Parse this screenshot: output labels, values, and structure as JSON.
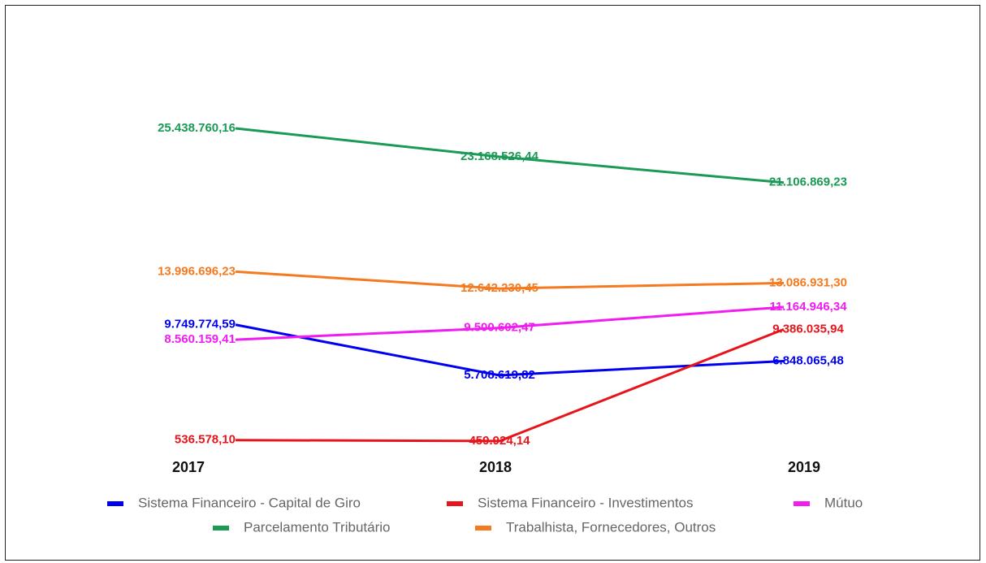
{
  "chart_data": {
    "type": "line",
    "categories": [
      "2017",
      "2018",
      "2019"
    ],
    "series": [
      {
        "name": "Sistema Financeiro - Capital de Giro",
        "color": "#0000f0",
        "values": [
          9749774.59,
          5708619.82,
          6848065.48
        ],
        "value_labels": [
          "9.749.774,59",
          "5.708.619,82",
          "6.848.065,48"
        ]
      },
      {
        "name": "Sistema Financeiro - Investimentos",
        "color": "#e8141b",
        "values": [
          536578.1,
          459924.14,
          9386035.94
        ],
        "value_labels": [
          "536.578,10",
          "459.924,14",
          "9.386.035,94"
        ]
      },
      {
        "name": "Mútuo",
        "color": "#f01cf0",
        "values": [
          8560159.41,
          9500602.47,
          11164946.34
        ],
        "value_labels": [
          "8.560.159,41",
          "9.500.602,47",
          "11.164.946,34"
        ]
      },
      {
        "name": "Parcelamento Tributário",
        "color": "#1a9a55",
        "values": [
          25438760.16,
          23168526.44,
          21106869.23
        ],
        "value_labels": [
          "25.438.760,16",
          "23.168.526,44",
          "21.106.869,23"
        ]
      },
      {
        "name": "Trabalhista, Fornecedores, Outros",
        "color": "#f57a1f",
        "values": [
          13996696.23,
          12642230.45,
          13086931.3
        ],
        "value_labels": [
          "13.996.696,23",
          "12.642.230,45",
          "13.086.931,30"
        ]
      }
    ],
    "legend": "bottom"
  }
}
